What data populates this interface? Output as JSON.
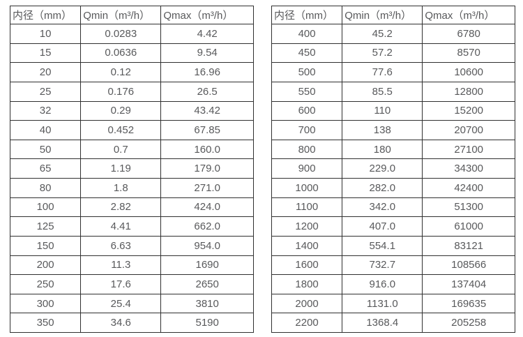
{
  "page": {
    "background_color": "#ffffff",
    "text_color": "#58595b",
    "border_color": "#303030"
  },
  "columns": [
    "内径（mm）",
    "Qmin（m³/h）",
    "Qmax（m³/h）"
  ],
  "left_table": {
    "rows": [
      [
        "10",
        "0.0283",
        "4.42"
      ],
      [
        "15",
        "0.0636",
        "9.54"
      ],
      [
        "20",
        "0.12",
        "16.96"
      ],
      [
        "25",
        "0.176",
        "26.5"
      ],
      [
        "32",
        "0.29",
        "43.42"
      ],
      [
        "40",
        "0.452",
        "67.85"
      ],
      [
        "50",
        "0.7",
        "160.0"
      ],
      [
        "65",
        "1.19",
        "179.0"
      ],
      [
        "80",
        "1.8",
        "271.0"
      ],
      [
        "100",
        "2.82",
        "424.0"
      ],
      [
        "125",
        "4.41",
        "662.0"
      ],
      [
        "150",
        "6.63",
        "954.0"
      ],
      [
        "200",
        "11.3",
        "1690"
      ],
      [
        "250",
        "17.6",
        "2650"
      ],
      [
        "300",
        "25.4",
        "3810"
      ],
      [
        "350",
        "34.6",
        "5190"
      ]
    ]
  },
  "right_table": {
    "rows": [
      [
        "400",
        "45.2",
        "6780"
      ],
      [
        "450",
        "57.2",
        "8570"
      ],
      [
        "500",
        "77.6",
        "10600"
      ],
      [
        "550",
        "85.5",
        "12800"
      ],
      [
        "600",
        "110",
        "15200"
      ],
      [
        "700",
        "138",
        "20700"
      ],
      [
        "800",
        "180",
        "27100"
      ],
      [
        "900",
        "229.0",
        "34300"
      ],
      [
        "1000",
        "282.0",
        "42400"
      ],
      [
        "1100",
        "342.0",
        "51300"
      ],
      [
        "1200",
        "407.0",
        "61000"
      ],
      [
        "1400",
        "554.1",
        "83121"
      ],
      [
        "1600",
        "732.7",
        "108566"
      ],
      [
        "1800",
        "916.0",
        "137404"
      ],
      [
        "2000",
        "1131.0",
        "169635"
      ],
      [
        "2200",
        "1368.4",
        "205258"
      ]
    ]
  },
  "chart_data": {
    "type": "table",
    "title": "",
    "columns": [
      "内径（mm）",
      "Qmin（m³/h）",
      "Qmax（m³/h）"
    ],
    "rows_left": [
      [
        10,
        0.0283,
        4.42
      ],
      [
        15,
        0.0636,
        9.54
      ],
      [
        20,
        0.12,
        16.96
      ],
      [
        25,
        0.176,
        26.5
      ],
      [
        32,
        0.29,
        43.42
      ],
      [
        40,
        0.452,
        67.85
      ],
      [
        50,
        0.7,
        160.0
      ],
      [
        65,
        1.19,
        179.0
      ],
      [
        80,
        1.8,
        271.0
      ],
      [
        100,
        2.82,
        424.0
      ],
      [
        125,
        4.41,
        662.0
      ],
      [
        150,
        6.63,
        954.0
      ],
      [
        200,
        11.3,
        1690
      ],
      [
        250,
        17.6,
        2650
      ],
      [
        300,
        25.4,
        3810
      ],
      [
        350,
        34.6,
        5190
      ]
    ],
    "rows_right": [
      [
        400,
        45.2,
        6780
      ],
      [
        450,
        57.2,
        8570
      ],
      [
        500,
        77.6,
        10600
      ],
      [
        550,
        85.5,
        12800
      ],
      [
        600,
        110,
        15200
      ],
      [
        700,
        138,
        20700
      ],
      [
        800,
        180,
        27100
      ],
      [
        900,
        229.0,
        34300
      ],
      [
        1000,
        282.0,
        42400
      ],
      [
        1100,
        342.0,
        51300
      ],
      [
        1200,
        407.0,
        61000
      ],
      [
        1400,
        554.1,
        83121
      ],
      [
        1600,
        732.7,
        108566
      ],
      [
        1800,
        916.0,
        137404
      ],
      [
        2000,
        1131.0,
        169635
      ],
      [
        2200,
        1368.4,
        205258
      ]
    ]
  }
}
